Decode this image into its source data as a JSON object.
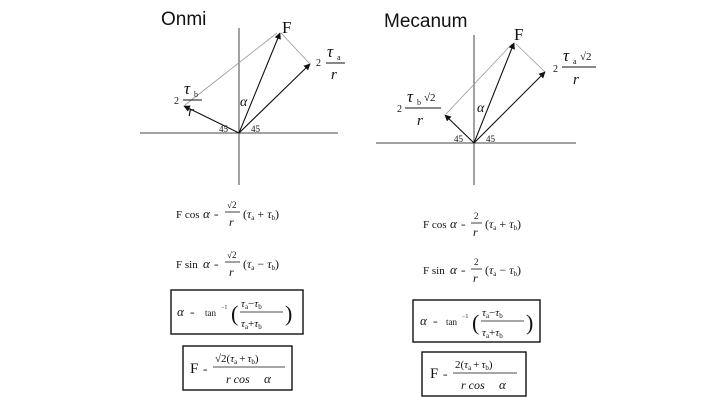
{
  "left": {
    "title": "Onmi",
    "force_label": "F",
    "alpha": "α",
    "angle_left": "45",
    "angle_right": "45",
    "vec_a": {
      "coef": "2",
      "tau": "τ",
      "sub": "a",
      "den": "r"
    },
    "vec_b": {
      "coef": "2",
      "tau": "τ",
      "sub": "b",
      "den": "r"
    },
    "eq1": {
      "lhs": "F cos",
      "alpha": "α",
      "eq": "=",
      "num": "√2",
      "den": "r",
      "op": "+"
    },
    "eq2": {
      "lhs": "F sin",
      "alpha": "α",
      "eq": "=",
      "num": "√2",
      "den": "r",
      "op": "−"
    },
    "eq3": {
      "alpha": "α",
      "eq": "=",
      "fn": "tan",
      "sup": "−1",
      "num_op": "−",
      "den_op": "+"
    },
    "eq4": {
      "lhs": "F",
      "eq": "=",
      "num_coef": "√2",
      "op": "+",
      "den": "r cos",
      "alpha": "α"
    }
  },
  "right": {
    "title": "Mecanum",
    "force_label": "F",
    "alpha": "α",
    "angle_left": "45",
    "angle_right": "45",
    "vec_a": {
      "coef": "2",
      "tau": "τ",
      "sub": "a",
      "root": "√2",
      "den": "r"
    },
    "vec_b": {
      "coef": "2",
      "tau": "τ",
      "sub": "b",
      "root": "√2",
      "den": "r"
    },
    "eq1": {
      "lhs": "F cos",
      "alpha": "α",
      "eq": "=",
      "num": "2",
      "den": "r",
      "op": "+"
    },
    "eq2": {
      "lhs": "F sin",
      "alpha": "α",
      "eq": "=",
      "num": "2",
      "den": "r",
      "op": "−"
    },
    "eq3": {
      "alpha": "α",
      "eq": "=",
      "fn": "tan",
      "sup": "−1",
      "num_op": "−",
      "den_op": "+"
    },
    "eq4": {
      "lhs": "F",
      "eq": "=",
      "num_coef": "2",
      "op": "+",
      "den": "r cos",
      "alpha": "α"
    }
  },
  "symbols": {
    "tau": "τ",
    "sub_a": "a",
    "sub_b": "b",
    "lparen": "(",
    "rparen": ")"
  }
}
